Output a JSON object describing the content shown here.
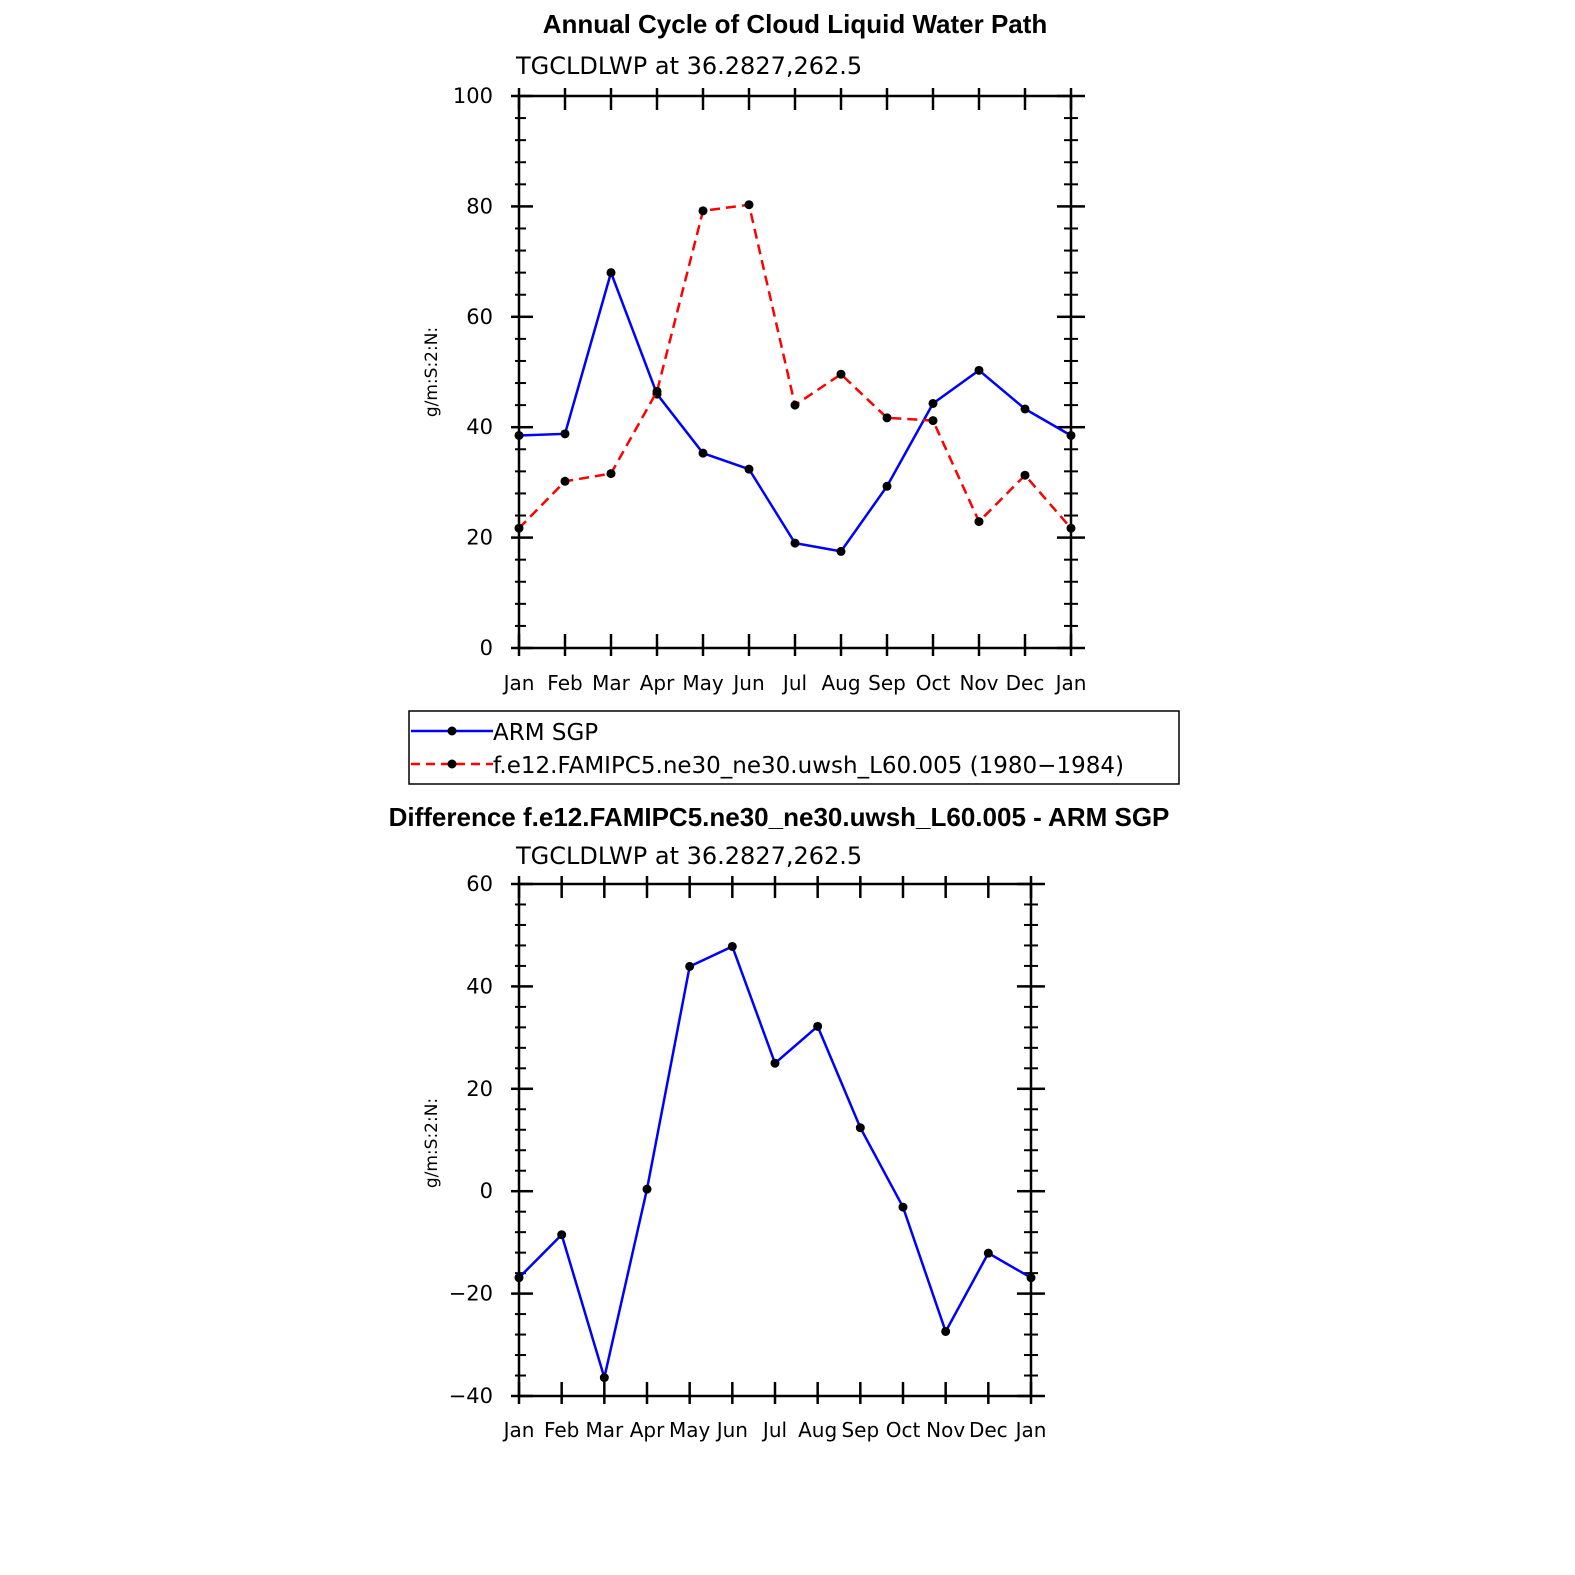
{
  "chart_data": [
    {
      "type": "line",
      "title": "Annual Cycle of Cloud Liquid Water Path",
      "subtitle": "TGCLDLWP at 36.2827,262.5",
      "xlabel": "",
      "ylabel": "g/m:S:2:N:",
      "categories": [
        "Jan",
        "Feb",
        "Mar",
        "Apr",
        "May",
        "Jun",
        "Jul",
        "Aug",
        "Sep",
        "Oct",
        "Nov",
        "Dec",
        "Jan"
      ],
      "ylim": [
        0,
        100
      ],
      "yticks": [
        "0",
        "20",
        "40",
        "60",
        "80",
        "100"
      ],
      "series": [
        {
          "name": "ARM SGP",
          "color": "#0000ff",
          "dash": "solid",
          "values": [
            38.5,
            38.8,
            68,
            46,
            35.3,
            32.4,
            19,
            17.5,
            29.3,
            44.3,
            50.3,
            43.3,
            38.5
          ]
        },
        {
          "name": "f.e12.FAMIPC5.ne30_ne30.uwsh_L60.005 (1980−1984)",
          "color": "#ff0000",
          "dash": "dashed",
          "values": [
            21.7,
            30.2,
            31.6,
            46.5,
            79.2,
            80.3,
            44,
            49.6,
            41.7,
            41.2,
            22.9,
            31.3,
            21.7
          ]
        }
      ],
      "legend": "bottom"
    },
    {
      "type": "line",
      "title": "Difference f.e12.FAMIPC5.ne30_ne30.uwsh_L60.005 - ARM SGP",
      "subtitle": "TGCLDLWP at 36.2827,262.5",
      "xlabel": "",
      "ylabel": "g/m:S:2:N:",
      "categories": [
        "Jan",
        "Feb",
        "Mar",
        "Apr",
        "May",
        "Jun",
        "Jul",
        "Aug",
        "Sep",
        "Oct",
        "Nov",
        "Dec",
        "Jan"
      ],
      "ylim": [
        -40,
        60
      ],
      "yticks": [
        "−40",
        "−20",
        "0",
        "20",
        "40",
        "60"
      ],
      "series": [
        {
          "name": "Difference",
          "color": "#0000ff",
          "dash": "solid",
          "values": [
            -16.9,
            -8.5,
            -36.4,
            0.4,
            43.9,
            47.8,
            25,
            32.2,
            12.4,
            -3.1,
            -27.4,
            -12.1,
            -16.9
          ]
        }
      ]
    }
  ]
}
